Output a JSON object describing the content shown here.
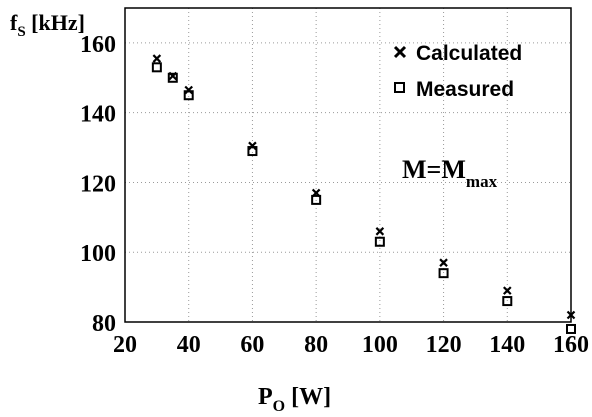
{
  "chart_data": {
    "type": "scatter",
    "title": "",
    "ylabel": {
      "main": "f",
      "sub": "S",
      "rest": " [kHz]"
    },
    "xlabel": {
      "main": "P",
      "sub": "O",
      "rest": " [W]"
    },
    "annotation": {
      "main": "M=M",
      "sub": "max"
    },
    "xlim": [
      20,
      160
    ],
    "ylim": [
      80,
      170
    ],
    "x_ticks": [
      20,
      40,
      60,
      80,
      100,
      120,
      140,
      160
    ],
    "y_ticks": [
      80,
      100,
      120,
      140,
      160
    ],
    "x_tick_labels": [
      "20",
      "40",
      "60",
      "80",
      "100",
      "120",
      "140",
      "160"
    ],
    "y_tick_labels": [
      "80",
      "100",
      "120",
      "140",
      "160"
    ],
    "grid": true,
    "legend_position": "top-right",
    "series": [
      {
        "name": "Calculated",
        "marker": "x-icon",
        "color": "#000000",
        "x": [
          30,
          35,
          40,
          60,
          80,
          100,
          120,
          140,
          160
        ],
        "y": [
          155.5,
          150.5,
          146.5,
          130.5,
          117,
          106,
          97,
          89,
          82
        ]
      },
      {
        "name": "Measured",
        "marker": "square-icon",
        "color": "#000000",
        "x": [
          30,
          35,
          40,
          60,
          80,
          100,
          120,
          140,
          160
        ],
        "y": [
          153,
          150,
          145,
          129,
          115,
          103,
          94,
          86,
          78
        ]
      }
    ]
  }
}
